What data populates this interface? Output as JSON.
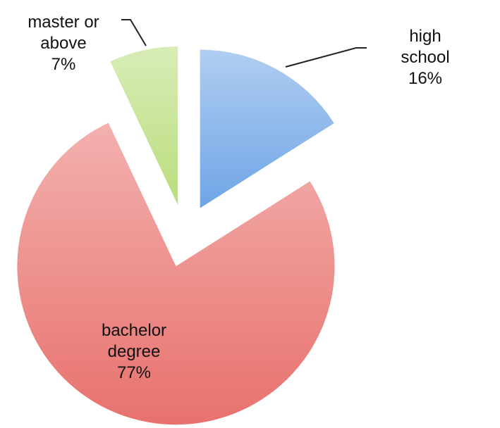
{
  "chart_data": {
    "type": "pie",
    "categories": [
      "high school",
      "bachelor degree",
      "master or above"
    ],
    "values": [
      16,
      77,
      7
    ],
    "value_labels": [
      "16%",
      "77%",
      "7%"
    ],
    "colors": [
      "#6fa5e6",
      "#e8716d",
      "#b9dd7c"
    ]
  }
}
